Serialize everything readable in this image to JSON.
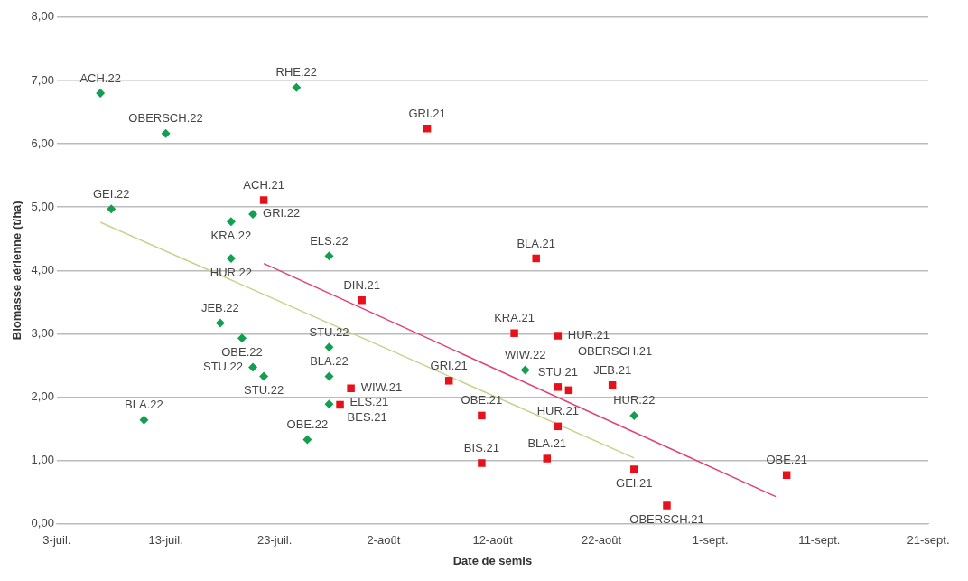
{
  "chart_data": {
    "type": "scatter",
    "xlabel": "Date de semis",
    "ylabel": "Biomasse aérienne (t/ha)",
    "xlim": [
      "--07-03",
      "--09-21"
    ],
    "xticks": [
      {
        "value": "--07-03",
        "label": "3-juil."
      },
      {
        "value": "--07-13",
        "label": "13-juil."
      },
      {
        "value": "--07-23",
        "label": "23-juil."
      },
      {
        "value": "--08-02",
        "label": "2-août"
      },
      {
        "value": "--08-12",
        "label": "12-août"
      },
      {
        "value": "--08-22",
        "label": "22-août"
      },
      {
        "value": "--09-01",
        "label": "1-sept."
      },
      {
        "value": "--09-11",
        "label": "11-sept."
      },
      {
        "value": "--09-21",
        "label": "21-sept."
      }
    ],
    "ylim": [
      0,
      8
    ],
    "yticks": [
      {
        "value": 0,
        "label": "0,00"
      },
      {
        "value": 1,
        "label": "1,00"
      },
      {
        "value": 2,
        "label": "2,00"
      },
      {
        "value": 3,
        "label": "3,00"
      },
      {
        "value": 4,
        "label": "4,00"
      },
      {
        "value": 5,
        "label": "5,00"
      },
      {
        "value": 6,
        "label": "6,00"
      },
      {
        "value": 7,
        "label": "7,00"
      },
      {
        "value": 8,
        "label": "8,00"
      }
    ],
    "grid": "y",
    "legend": false,
    "series": [
      {
        "marker": "diamond",
        "color": "#12a050",
        "x": [
          "--07-07",
          "--07-13",
          "--07-25",
          "--07-08",
          "--07-19",
          "--07-21",
          "--07-19",
          "--07-28",
          "--07-18",
          "--07-20",
          "--07-21",
          "--07-22",
          "--07-28",
          "--07-28",
          "--07-28",
          "--07-26",
          "--07-11",
          "--08-15",
          "--08-25"
        ],
        "values": [
          6.8,
          6.16,
          6.89,
          4.97,
          4.77,
          4.89,
          4.19,
          4.23,
          3.17,
          2.93,
          2.47,
          2.33,
          2.79,
          2.33,
          1.89,
          1.33,
          1.64,
          2.43,
          1.71
        ]
      },
      {
        "marker": "square",
        "color": "#e8111b",
        "x": [
          "--07-22",
          "--08-06",
          "--07-31",
          "--08-16",
          "--08-14",
          "--08-18",
          "--08-08",
          "--08-11",
          "--08-11",
          "--08-17",
          "--08-18",
          "--08-18",
          "--08-19",
          "--08-23",
          "--08-25",
          "--08-28",
          "--09-08",
          "--07-30",
          "--07-29"
        ],
        "values": [
          5.11,
          6.24,
          3.53,
          4.19,
          3.01,
          2.97,
          2.26,
          1.71,
          0.96,
          1.03,
          1.54,
          2.16,
          2.11,
          2.19,
          0.86,
          0.29,
          0.77,
          2.14,
          1.88
        ]
      },
      {
        "type": "line",
        "marker": "none",
        "color": "#c8d08a",
        "x": [
          "--07-07",
          "--08-25"
        ],
        "values": [
          4.76,
          1.04
        ]
      },
      {
        "type": "line",
        "marker": "none",
        "color": "#e0407a",
        "x": [
          "--07-22",
          "--09-07"
        ],
        "values": [
          4.11,
          0.43
        ]
      }
    ],
    "annotations": [
      {
        "text": "ACH.22",
        "x": "--07-07",
        "y": 6.8
      },
      {
        "text": "OBERSCH.22",
        "x": "--07-13",
        "y": 6.16
      },
      {
        "text": "RHE.22",
        "x": "--07-25",
        "y": 6.89
      },
      {
        "text": "GEI.22",
        "x": "--07-08",
        "y": 4.97
      },
      {
        "text": "KRA.22",
        "x": "--07-19",
        "y": 4.77
      },
      {
        "text": "GRI.22",
        "x": "--07-21",
        "y": 4.89
      },
      {
        "text": "HUR.22",
        "x": "--07-19",
        "y": 4.19
      },
      {
        "text": "ELS.22",
        "x": "--07-28",
        "y": 4.23
      },
      {
        "text": "JEB.22",
        "x": "--07-18",
        "y": 3.17
      },
      {
        "text": "OBE.22",
        "x": "--07-20",
        "y": 2.93
      },
      {
        "text": "STU.22",
        "x": "--07-21",
        "y": 2.47
      },
      {
        "text": "STU.22",
        "x": "--07-22",
        "y": 2.33
      },
      {
        "text": "STU.22",
        "x": "--07-28",
        "y": 2.79
      },
      {
        "text": "BLA.22",
        "x": "--07-28",
        "y": 2.33
      },
      {
        "text": "OBE.22",
        "x": "--07-26",
        "y": 1.33
      },
      {
        "text": "BLA.22",
        "x": "--07-11",
        "y": 1.64
      },
      {
        "text": "WIW.22",
        "x": "--08-15",
        "y": 2.43
      },
      {
        "text": "HUR.22",
        "x": "--08-25",
        "y": 1.71
      },
      {
        "text": "ACH.21",
        "x": "--07-22",
        "y": 5.11
      },
      {
        "text": "GRI.21",
        "x": "--08-06",
        "y": 6.24
      },
      {
        "text": "DIN.21",
        "x": "--07-31",
        "y": 3.53
      },
      {
        "text": "BLA.21",
        "x": "--08-16",
        "y": 4.19
      },
      {
        "text": "KRA.21",
        "x": "--08-14",
        "y": 3.01
      },
      {
        "text": "HUR.21",
        "x": "--08-18",
        "y": 2.97
      },
      {
        "text": "GRI.21",
        "x": "--08-08",
        "y": 2.26
      },
      {
        "text": "OBE.21",
        "x": "--08-11",
        "y": 1.71
      },
      {
        "text": "BIS.21",
        "x": "--08-11",
        "y": 0.96
      },
      {
        "text": "BLA.21",
        "x": "--08-17",
        "y": 1.03
      },
      {
        "text": "HUR.21",
        "x": "--08-18",
        "y": 1.54
      },
      {
        "text": "STU.21",
        "x": "--08-18",
        "y": 2.16
      },
      {
        "text": "OBERSCH.21",
        "x": "--08-19",
        "y": 2.11
      },
      {
        "text": "JEB.21",
        "x": "--08-23",
        "y": 2.19
      },
      {
        "text": "GEI.21",
        "x": "--08-25",
        "y": 0.86
      },
      {
        "text": "OBERSCH.21",
        "x": "--08-28",
        "y": 0.29
      },
      {
        "text": "OBE.21",
        "x": "--09-08",
        "y": 0.77
      },
      {
        "text": "WIW.21",
        "x": "--07-30",
        "y": 2.14
      },
      {
        "text": "ELS.21",
        "x": "--07-29",
        "y": 1.92
      },
      {
        "text": "BES.21",
        "x": "--07-29",
        "y": 1.88
      }
    ]
  }
}
